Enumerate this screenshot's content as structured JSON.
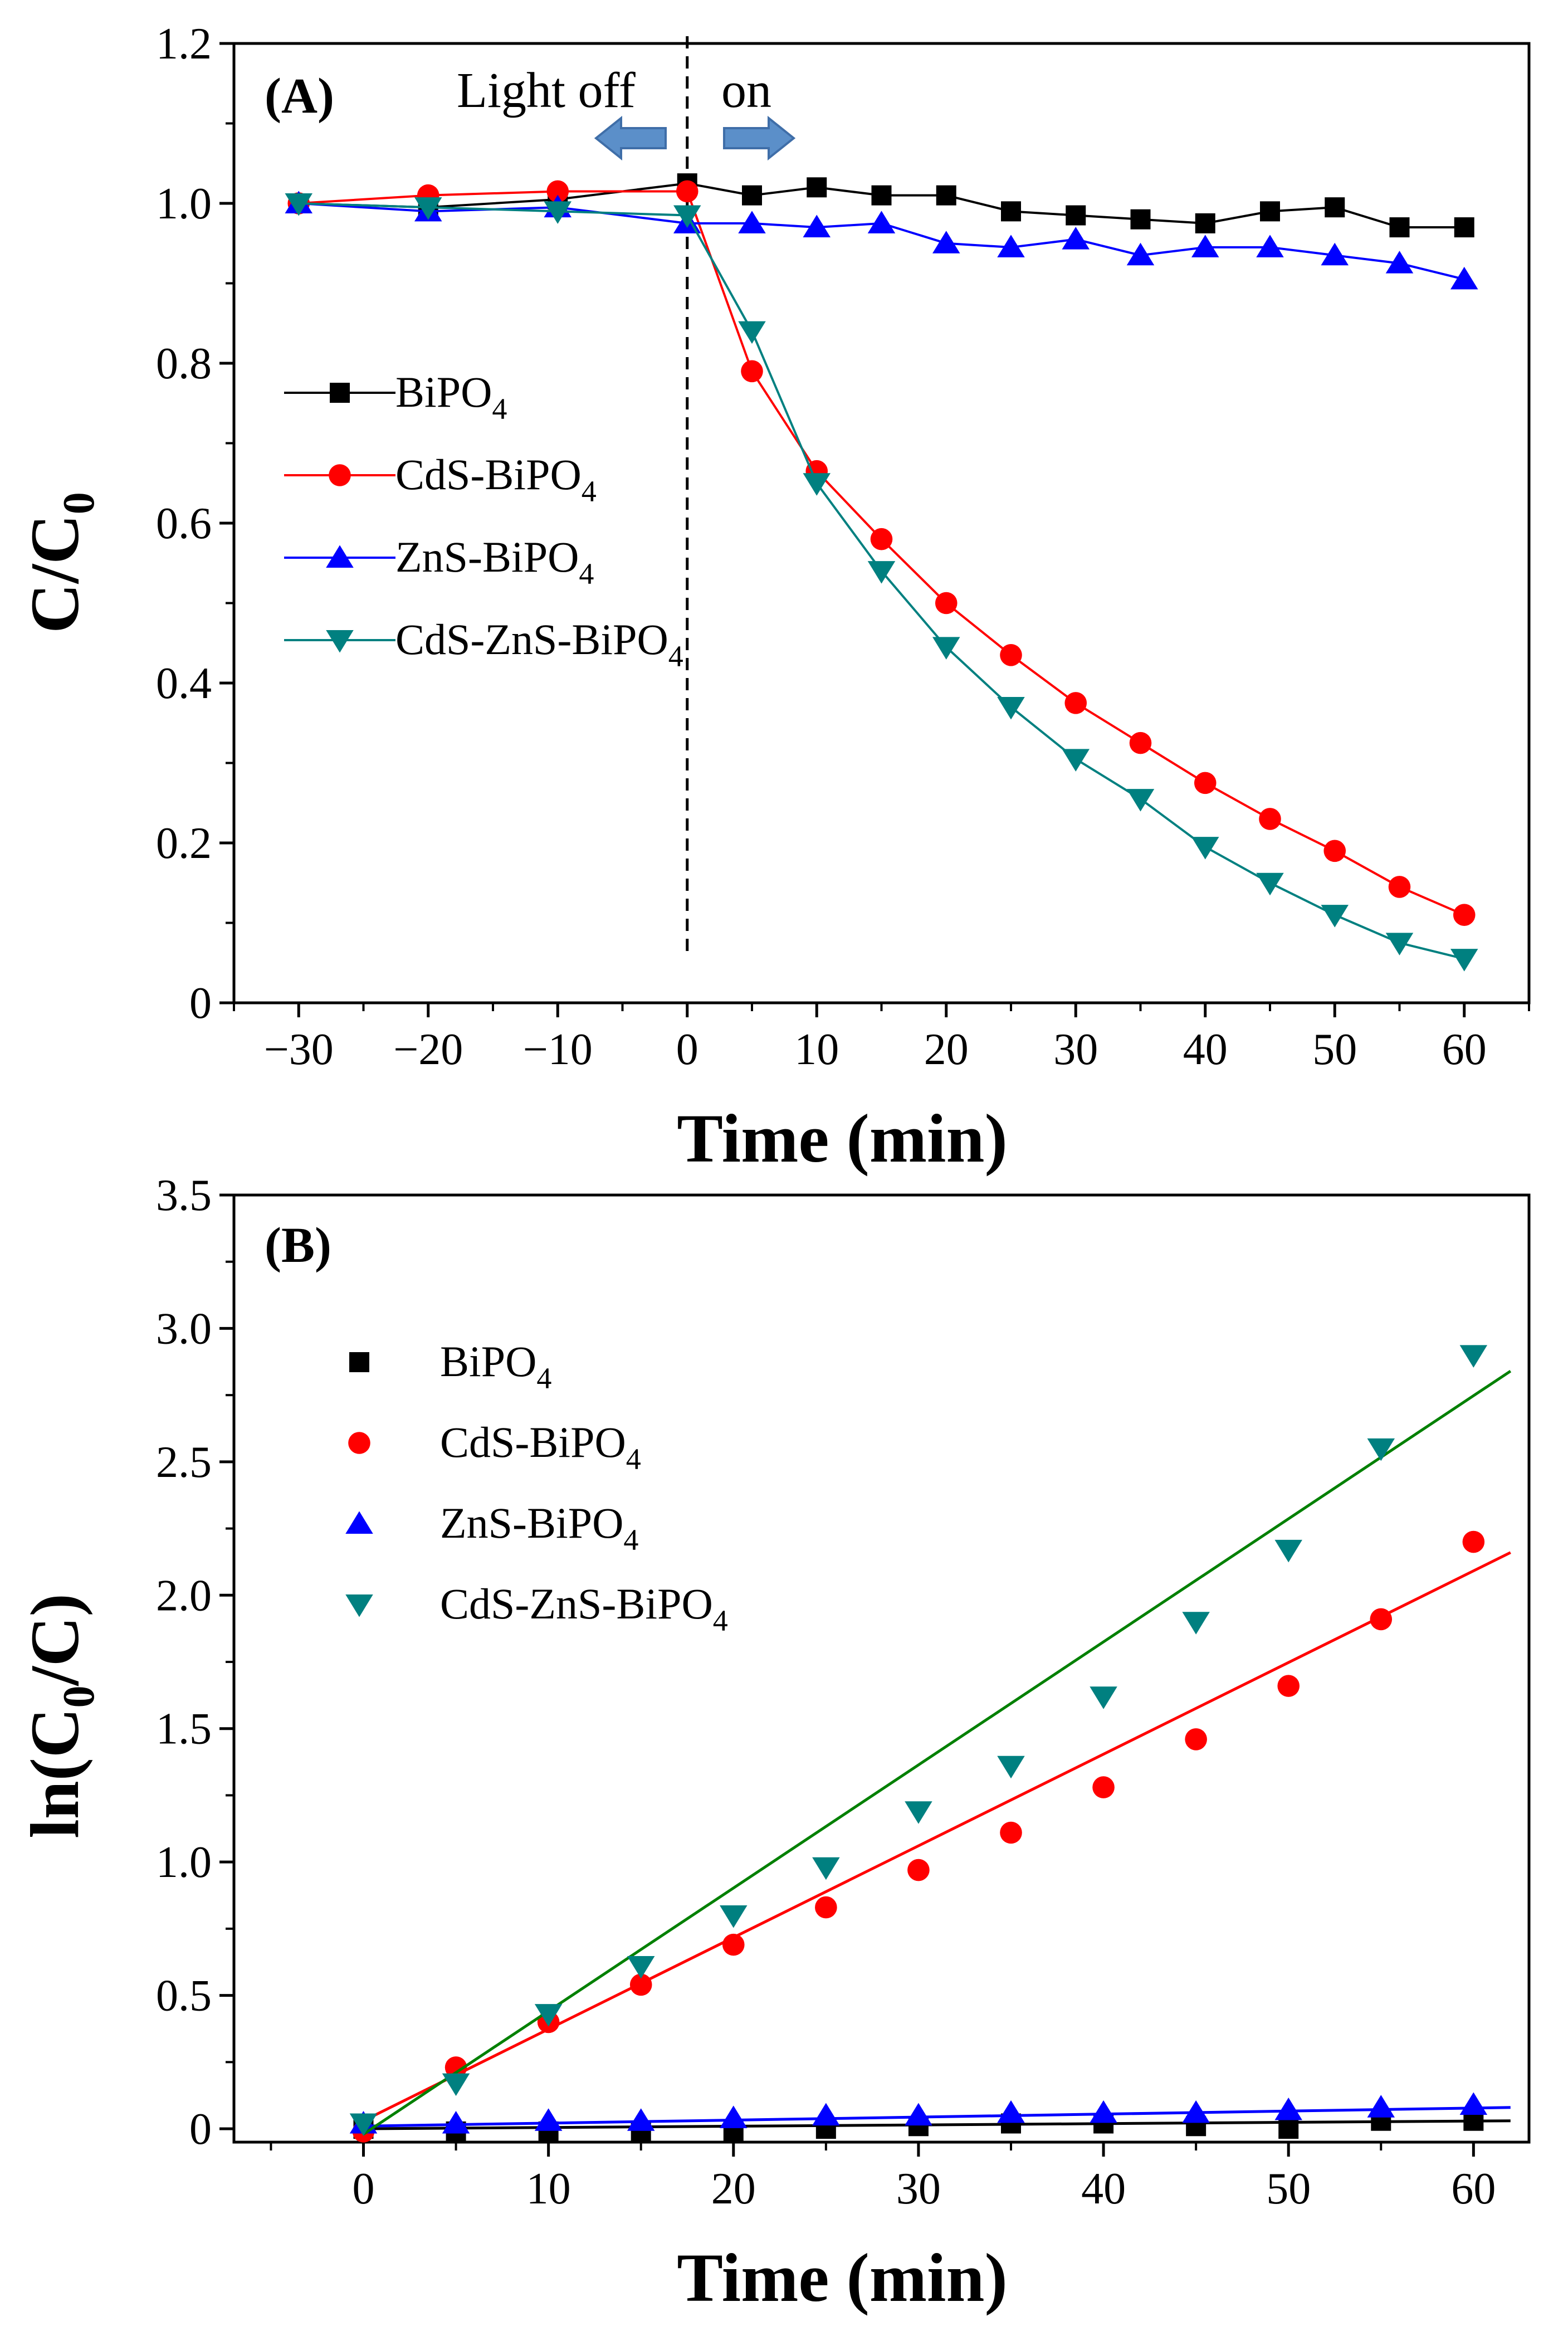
{
  "chart_data": [
    {
      "type": "line",
      "panel_label": "(A)",
      "xlabel": "Time (min)",
      "ylabel_main": "C/C",
      "ylabel_sub": "0",
      "xlim": [
        -35,
        65
      ],
      "ylim": [
        0,
        1.2
      ],
      "x_ticks": [
        -30,
        -20,
        -10,
        0,
        10,
        20,
        30,
        40,
        50,
        60
      ],
      "x_tick_labels": [
        "−30",
        "−20",
        "−10",
        "0",
        "10",
        "20",
        "30",
        "40",
        "50",
        "60"
      ],
      "y_ticks": [
        0,
        0.2,
        0.4,
        0.6,
        0.8,
        1.0,
        1.2
      ],
      "y_tick_labels": [
        "0",
        "0.2",
        "0.4",
        "0.6",
        "0.8",
        "1.0",
        "1.2"
      ],
      "legend_position": "middle-left",
      "annotations": {
        "light_off": "Light off",
        "light_on": "on",
        "divider_x": 0,
        "arrow_color": "#5b8fc9"
      },
      "series": [
        {
          "name": "BiPO",
          "name_sub": "4",
          "color": "#000000",
          "marker": "square",
          "x": [
            -30,
            -20,
            -10,
            0,
            5,
            10,
            15,
            20,
            25,
            30,
            35,
            40,
            45,
            50,
            55,
            60
          ],
          "y": [
            1.0,
            0.995,
            1.005,
            1.025,
            1.01,
            1.02,
            1.01,
            1.01,
            0.99,
            0.985,
            0.98,
            0.975,
            0.99,
            0.995,
            0.97,
            0.97
          ]
        },
        {
          "name": "CdS-BiPO",
          "name_sub": "4",
          "color": "#ff0000",
          "marker": "circle",
          "x": [
            -30,
            -20,
            -10,
            0,
            5,
            10,
            15,
            20,
            25,
            30,
            35,
            40,
            45,
            50,
            55,
            60
          ],
          "y": [
            1.0,
            1.01,
            1.015,
            1.015,
            0.79,
            0.665,
            0.58,
            0.5,
            0.435,
            0.375,
            0.325,
            0.275,
            0.23,
            0.19,
            0.145,
            0.11
          ]
        },
        {
          "name": "ZnS-BiPO",
          "name_sub": "4",
          "color": "#0000ff",
          "marker": "triangle-up",
          "x": [
            -30,
            -20,
            -10,
            0,
            5,
            10,
            15,
            20,
            25,
            30,
            35,
            40,
            45,
            50,
            55,
            60
          ],
          "y": [
            1.0,
            0.99,
            0.995,
            0.975,
            0.975,
            0.97,
            0.975,
            0.95,
            0.945,
            0.955,
            0.935,
            0.945,
            0.945,
            0.935,
            0.925,
            0.905
          ]
        },
        {
          "name": "CdS-ZnS-BiPO",
          "name_sub": "4",
          "color": "#008080",
          "marker": "triangle-down",
          "x": [
            -30,
            -20,
            -10,
            0,
            5,
            10,
            15,
            20,
            25,
            30,
            35,
            40,
            45,
            50,
            55,
            60
          ],
          "y": [
            1.0,
            0.995,
            0.99,
            0.985,
            0.84,
            0.65,
            0.54,
            0.445,
            0.37,
            0.305,
            0.255,
            0.195,
            0.15,
            0.11,
            0.075,
            0.055
          ]
        }
      ]
    },
    {
      "type": "scatter",
      "panel_label": "(B)",
      "xlabel": "Time (min)",
      "ylabel_main": "ln(C",
      "ylabel_sub": "0",
      "ylabel_end": "/C)",
      "xlim": [
        -7,
        63
      ],
      "ylim": [
        -0.05,
        3.5
      ],
      "x_ticks": [
        0,
        10,
        20,
        30,
        40,
        50,
        60
      ],
      "x_tick_labels": [
        "0",
        "10",
        "20",
        "30",
        "40",
        "50",
        "60"
      ],
      "y_ticks": [
        0,
        0.5,
        1.0,
        1.5,
        2.0,
        2.5,
        3.0,
        3.5
      ],
      "y_tick_labels": [
        "0",
        "0.5",
        "1.0",
        "1.5",
        "2.0",
        "2.5",
        "3.0",
        "3.5"
      ],
      "legend_position": "upper-left",
      "series": [
        {
          "name": "BiPO",
          "name_sub": "4",
          "color": "#000000",
          "marker": "square",
          "x": [
            0,
            5,
            10,
            15,
            20,
            25,
            30,
            35,
            40,
            45,
            50,
            55,
            60
          ],
          "y": [
            0.0,
            -0.01,
            -0.01,
            -0.01,
            -0.01,
            0.0,
            0.01,
            0.02,
            0.02,
            0.01,
            0.0,
            0.03,
            0.03
          ],
          "fit": {
            "x": [
              0,
              62
            ],
            "y": [
              0.0,
              0.03
            ],
            "color": "#000000"
          }
        },
        {
          "name": "CdS-BiPO",
          "name_sub": "4",
          "color": "#ff0000",
          "marker": "circle",
          "x": [
            0,
            5,
            10,
            15,
            20,
            25,
            30,
            35,
            40,
            45,
            50,
            55,
            60
          ],
          "y": [
            -0.01,
            0.23,
            0.4,
            0.54,
            0.69,
            0.83,
            0.97,
            1.11,
            1.28,
            1.46,
            1.66,
            1.91,
            2.2
          ],
          "fit": {
            "x": [
              0,
              62
            ],
            "y": [
              0.03,
              2.16
            ],
            "color": "#ff0000"
          }
        },
        {
          "name": "ZnS-BiPO",
          "name_sub": "4",
          "color": "#0000ff",
          "marker": "triangle-up",
          "x": [
            0,
            5,
            10,
            15,
            20,
            25,
            30,
            35,
            40,
            45,
            50,
            55,
            60
          ],
          "y": [
            0.02,
            0.02,
            0.03,
            0.03,
            0.04,
            0.05,
            0.05,
            0.06,
            0.06,
            0.06,
            0.07,
            0.08,
            0.09
          ],
          "fit": {
            "x": [
              0,
              62
            ],
            "y": [
              0.01,
              0.08
            ],
            "color": "#0000ff"
          }
        },
        {
          "name": "CdS-ZnS-BiPO",
          "name_sub": "4",
          "color": "#008080",
          "marker": "triangle-down",
          "x": [
            0,
            5,
            10,
            15,
            20,
            25,
            30,
            35,
            40,
            45,
            50,
            55,
            60
          ],
          "y": [
            0.02,
            0.17,
            0.43,
            0.61,
            0.8,
            0.98,
            1.19,
            1.36,
            1.62,
            1.9,
            2.17,
            2.55,
            2.9
          ],
          "fit": {
            "x": [
              0,
              62
            ],
            "y": [
              -0.02,
              2.84
            ],
            "color": "#008000"
          }
        }
      ]
    }
  ]
}
